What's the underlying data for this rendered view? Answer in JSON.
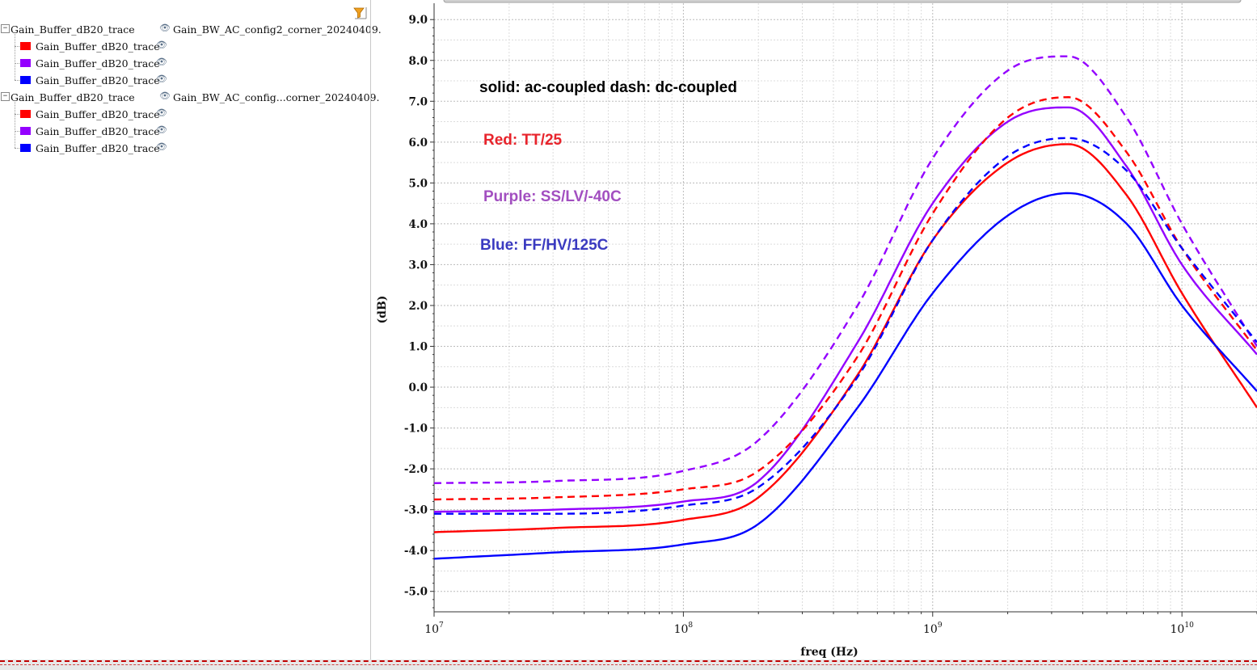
{
  "tree": {
    "groups": [
      {
        "label": "Gain_Buffer_dB20_trace",
        "file": "Gain_BW_AC_config2_corner_20240409.",
        "children": [
          {
            "label": "Gain_Buffer_dB20_trace",
            "color": "#ff0000"
          },
          {
            "label": "Gain_Buffer_dB20_trace",
            "color": "#9400ff"
          },
          {
            "label": "Gain_Buffer_dB20_trace",
            "color": "#0000ff"
          }
        ]
      },
      {
        "label": "Gain_Buffer_dB20_trace",
        "file": "Gain_BW_AC_config...corner_20240409.",
        "children": [
          {
            "label": "Gain_Buffer_dB20_trace",
            "color": "#ff0000"
          },
          {
            "label": "Gain_Buffer_dB20_trace",
            "color": "#9400ff"
          },
          {
            "label": "Gain_Buffer_dB20_trace",
            "color": "#0000ff"
          }
        ]
      }
    ],
    "expand_symbol": "−",
    "eye_icon": "eye-icon",
    "filter_icon": "filter-icon"
  },
  "chart_data": {
    "type": "line",
    "xlabel": "freq (Hz)",
    "ylabel": "(dB)",
    "xscale": "log",
    "xlim": [
      10000000,
      20000000000
    ],
    "ylim": [
      -5.5,
      9.4
    ],
    "yticks": [
      "9.0",
      "8.0",
      "7.0",
      "6.0",
      "5.0",
      "4.0",
      "3.0",
      "2.0",
      "1.0",
      "0.0",
      "-1.0",
      "-2.0",
      "-3.0",
      "-4.0",
      "-5.0"
    ],
    "xticks": [
      {
        "base": "10",
        "exp": "7"
      },
      {
        "base": "10",
        "exp": "8"
      },
      {
        "base": "10",
        "exp": "9"
      },
      {
        "base": "10",
        "exp": "10"
      }
    ],
    "grid": true,
    "annotations": [
      {
        "text": "solid: ac-coupled  dash:  dc-coupled",
        "color": "#000000"
      },
      {
        "text": "Red: TT/25",
        "color": "#e8242c"
      },
      {
        "text": "Purple: SS/LV/-40C",
        "color": "#a24fc0"
      },
      {
        "text": "Blue:  FF/HV/125C",
        "color": "#3a3ac0"
      }
    ],
    "x": [
      10000000,
      30000000,
      100000000,
      200000000,
      500000000,
      1000000000,
      2000000000,
      3500000000,
      6000000000,
      10000000000,
      20000000000
    ],
    "series": [
      {
        "color": "#ff0000",
        "dash": false,
        "values": [
          -3.55,
          -3.45,
          -3.25,
          -2.7,
          0.3,
          3.6,
          5.5,
          5.95,
          4.7,
          2.3,
          -0.5
        ]
      },
      {
        "color": "#9400ff",
        "dash": false,
        "values": [
          -3.05,
          -3.0,
          -2.8,
          -2.3,
          1.1,
          4.5,
          6.5,
          6.85,
          5.4,
          3.0,
          0.8
        ]
      },
      {
        "color": "#0000ff",
        "dash": false,
        "values": [
          -4.2,
          -4.05,
          -3.85,
          -3.35,
          -0.5,
          2.3,
          4.2,
          4.75,
          4.0,
          2.0,
          -0.1
        ]
      },
      {
        "color": "#ff0000",
        "dash": true,
        "values": [
          -2.75,
          -2.7,
          -2.5,
          -2.05,
          0.75,
          4.25,
          6.6,
          7.1,
          5.75,
          3.4,
          0.9
        ]
      },
      {
        "color": "#9400ff",
        "dash": true,
        "values": [
          -2.35,
          -2.3,
          -2.05,
          -1.3,
          2.0,
          5.6,
          7.75,
          8.1,
          6.6,
          4.0,
          1.0
        ]
      },
      {
        "color": "#0000ff",
        "dash": true,
        "values": [
          -3.1,
          -3.1,
          -2.9,
          -2.45,
          0.25,
          3.6,
          5.65,
          6.1,
          5.3,
          3.4,
          1.1
        ]
      }
    ]
  }
}
